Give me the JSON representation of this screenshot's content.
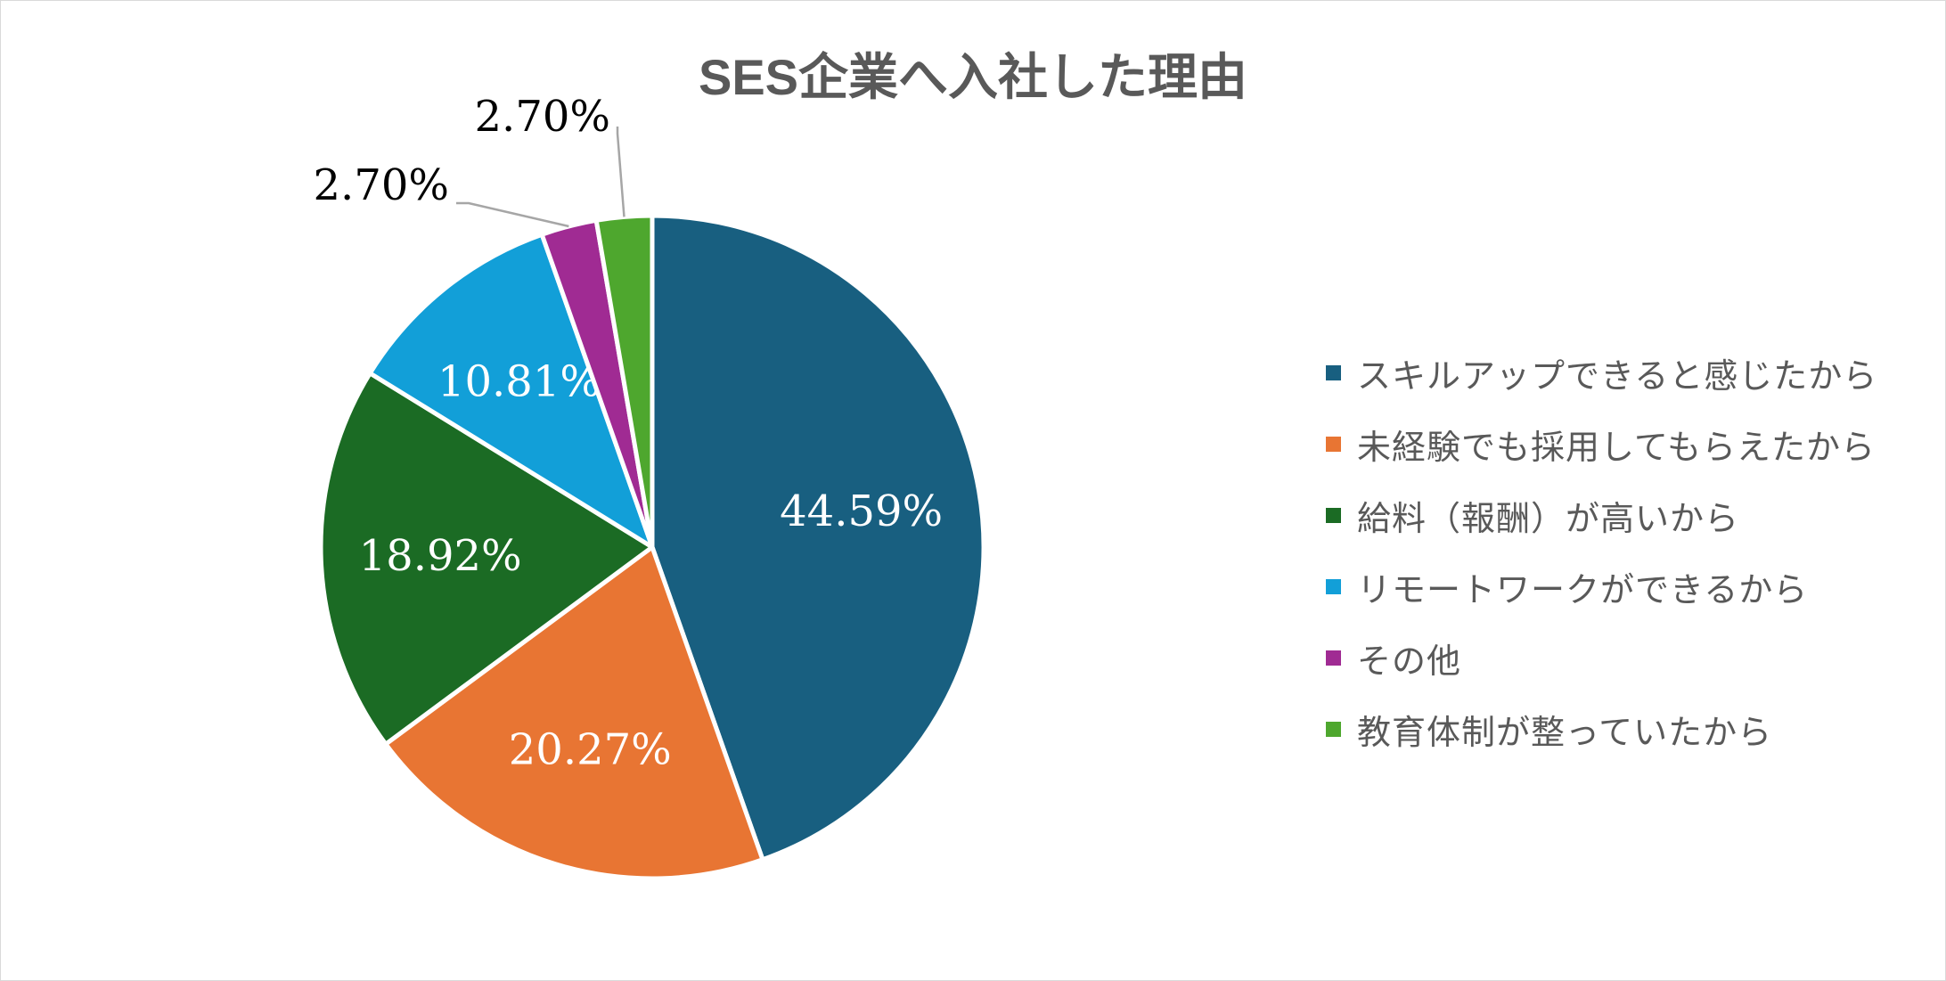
{
  "chart_data": {
    "type": "pie",
    "title": "SES企業へ入社した理由",
    "legend_position": "right",
    "slices": [
      {
        "label": "スキルアップできると感じたから",
        "value": 44.59,
        "value_label": "44.59%",
        "color": "#185f80",
        "label_color": "#ffffff"
      },
      {
        "label": "未経験でも採用してもらえたから",
        "value": 20.27,
        "value_label": "20.27%",
        "color": "#e87533",
        "label_color": "#ffffff"
      },
      {
        "label": "給料（報酬）が高いから",
        "value": 18.92,
        "value_label": "18.92%",
        "color": "#1b6b24",
        "label_color": "#ffffff"
      },
      {
        "label": "リモートワークができるから",
        "value": 10.81,
        "value_label": "10.81%",
        "color": "#129fd8",
        "label_color": "#ffffff"
      },
      {
        "label": "その他",
        "value": 2.7,
        "value_label": "2.70%",
        "color": "#a02b93",
        "label_color": "#000000"
      },
      {
        "label": "教育体制が整っていたから",
        "value": 2.7,
        "value_label": "2.70%",
        "color": "#4ea72e",
        "label_color": "#000000"
      }
    ]
  }
}
